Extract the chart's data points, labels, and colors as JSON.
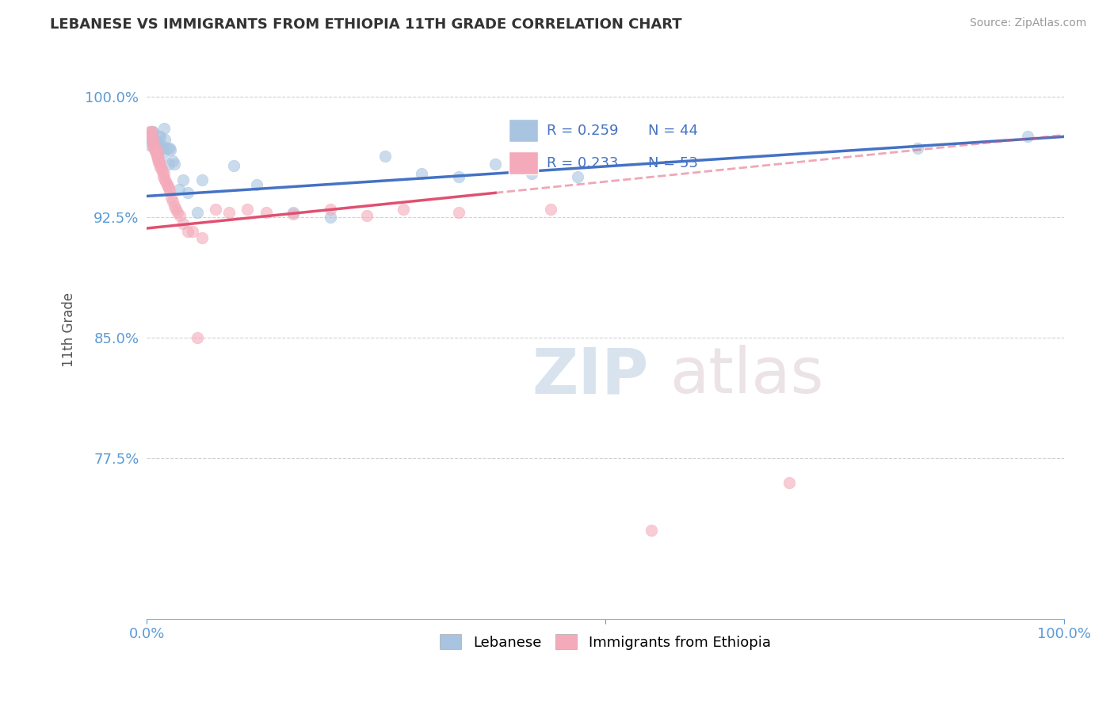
{
  "title": "LEBANESE VS IMMIGRANTS FROM ETHIOPIA 11TH GRADE CORRELATION CHART",
  "source": "Source: ZipAtlas.com",
  "ylabel": "11th Grade",
  "xlim": [
    0.0,
    1.0
  ],
  "ylim": [
    0.675,
    1.035
  ],
  "yticks": [
    0.775,
    0.85,
    0.925,
    1.0
  ],
  "ytick_labels": [
    "77.5%",
    "85.0%",
    "92.5%",
    "100.0%"
  ],
  "xtick_labels_pos": [
    0.0,
    0.5,
    1.0
  ],
  "xtick_labels": [
    "0.0%",
    "",
    "100.0%"
  ],
  "legend_R_blue": "R = 0.259",
  "legend_N_blue": "N = 44",
  "legend_R_pink": "R = 0.233",
  "legend_N_pink": "N = 53",
  "legend_label_blue": "Lebanese",
  "legend_label_pink": "Immigrants from Ethiopia",
  "blue_color": "#A8C4E0",
  "pink_color": "#F4AABA",
  "blue_line_color": "#4472C4",
  "pink_line_color": "#E05070",
  "watermark_zip": "ZIP",
  "watermark_atlas": "atlas",
  "blue_x": [
    0.003,
    0.004,
    0.005,
    0.006,
    0.006,
    0.007,
    0.007,
    0.008,
    0.009,
    0.01,
    0.01,
    0.011,
    0.012,
    0.013,
    0.014,
    0.015,
    0.016,
    0.017,
    0.018,
    0.019,
    0.02,
    0.022,
    0.024,
    0.025,
    0.026,
    0.028,
    0.03,
    0.035,
    0.04,
    0.045,
    0.055,
    0.06,
    0.095,
    0.12,
    0.16,
    0.2,
    0.26,
    0.3,
    0.34,
    0.38,
    0.42,
    0.47,
    0.84,
    0.96
  ],
  "blue_y": [
    0.97,
    0.975,
    0.972,
    0.978,
    0.975,
    0.973,
    0.978,
    0.971,
    0.969,
    0.968,
    0.972,
    0.966,
    0.964,
    0.975,
    0.97,
    0.975,
    0.97,
    0.968,
    0.965,
    0.98,
    0.973,
    0.968,
    0.958,
    0.968,
    0.967,
    0.96,
    0.958,
    0.942,
    0.948,
    0.94,
    0.928,
    0.948,
    0.957,
    0.945,
    0.928,
    0.925,
    0.963,
    0.952,
    0.95,
    0.958,
    0.952,
    0.95,
    0.968,
    0.975
  ],
  "pink_x": [
    0.003,
    0.004,
    0.005,
    0.006,
    0.006,
    0.007,
    0.007,
    0.008,
    0.008,
    0.009,
    0.01,
    0.01,
    0.011,
    0.011,
    0.012,
    0.012,
    0.013,
    0.014,
    0.015,
    0.015,
    0.016,
    0.017,
    0.018,
    0.019,
    0.02,
    0.021,
    0.022,
    0.023,
    0.024,
    0.025,
    0.027,
    0.028,
    0.03,
    0.032,
    0.034,
    0.036,
    0.04,
    0.045,
    0.05,
    0.06,
    0.075,
    0.09,
    0.11,
    0.13,
    0.16,
    0.2,
    0.24,
    0.28,
    0.34,
    0.44,
    0.55,
    0.7,
    0.055
  ],
  "pink_y": [
    0.978,
    0.976,
    0.978,
    0.974,
    0.976,
    0.97,
    0.972,
    0.968,
    0.97,
    0.966,
    0.965,
    0.968,
    0.963,
    0.966,
    0.961,
    0.963,
    0.959,
    0.96,
    0.956,
    0.958,
    0.955,
    0.953,
    0.95,
    0.952,
    0.948,
    0.947,
    0.945,
    0.944,
    0.943,
    0.941,
    0.937,
    0.935,
    0.932,
    0.93,
    0.928,
    0.926,
    0.921,
    0.916,
    0.916,
    0.912,
    0.93,
    0.928,
    0.93,
    0.928,
    0.927,
    0.93,
    0.926,
    0.93,
    0.928,
    0.93,
    0.73,
    0.76,
    0.85
  ]
}
